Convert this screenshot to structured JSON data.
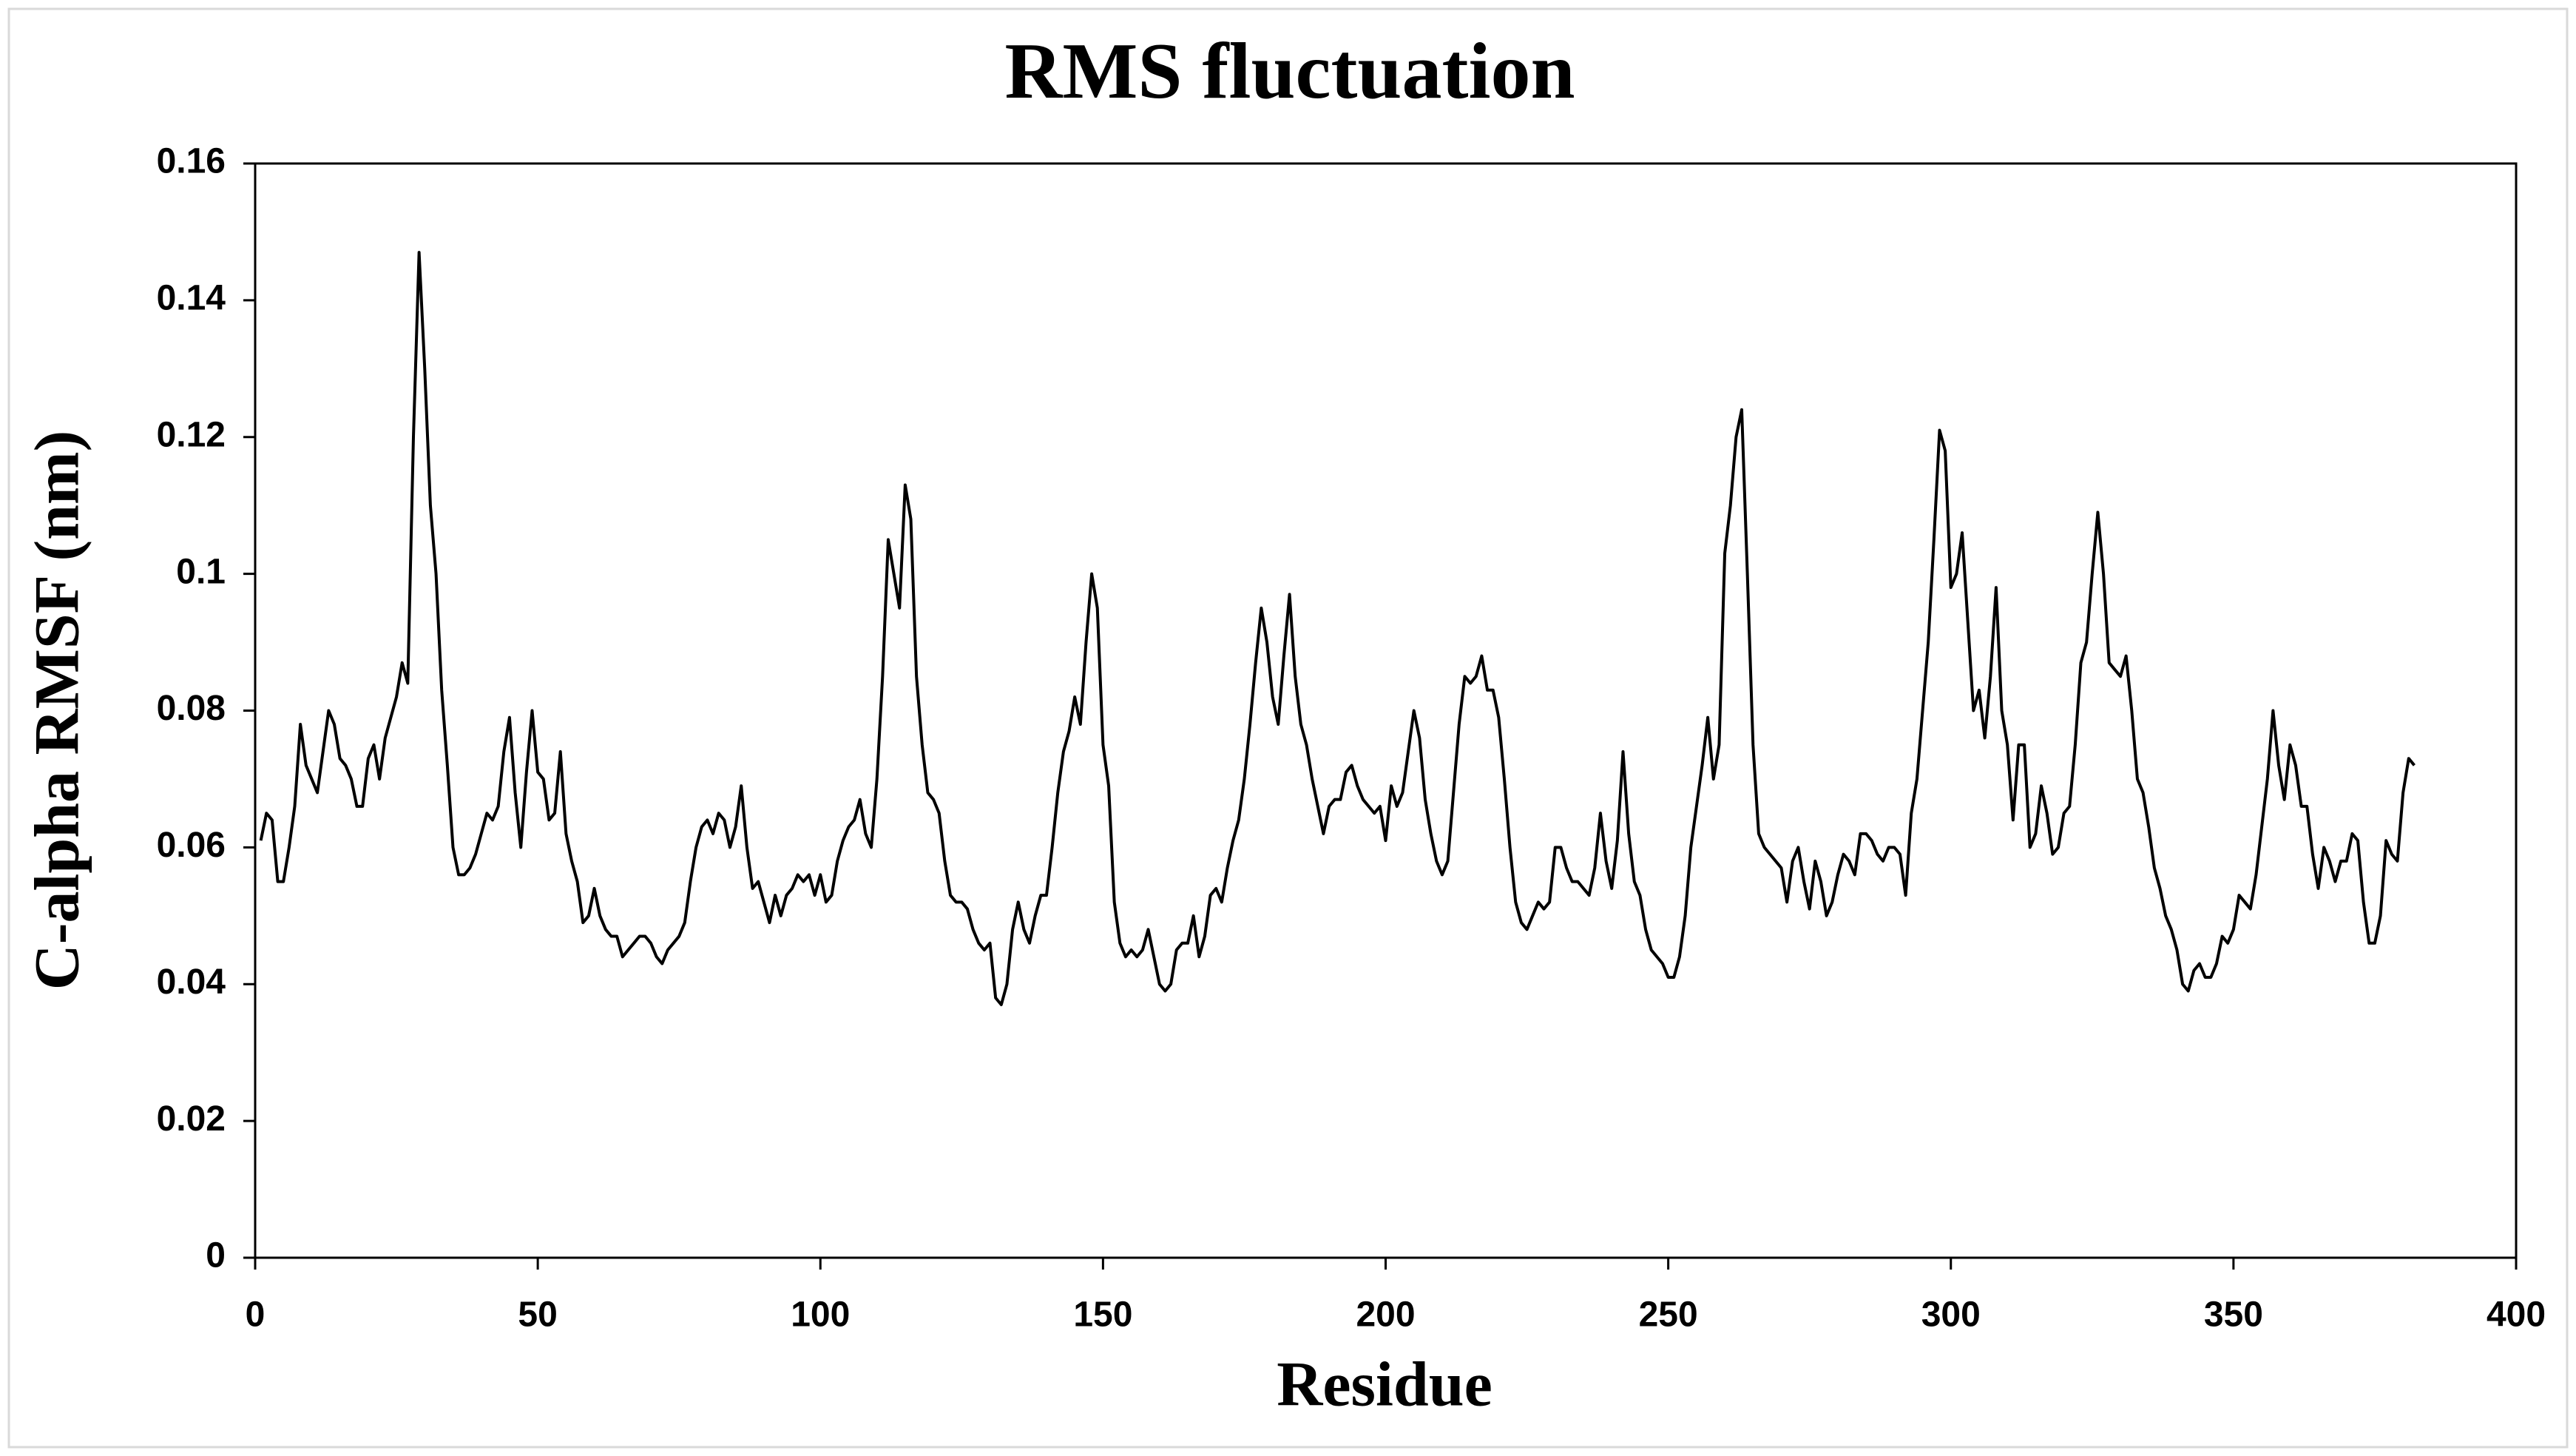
{
  "chart_data": {
    "type": "line",
    "title": "RMS fluctuation",
    "xlabel": "Residue",
    "ylabel": "C-alpha RMSF (nm)",
    "xlim": [
      0,
      400
    ],
    "xticks": [
      0,
      50,
      100,
      150,
      200,
      250,
      300,
      350,
      400
    ],
    "ylim": [
      0,
      0.16
    ],
    "yticks": [
      0,
      0.02,
      0.04,
      0.06,
      0.08,
      0.1,
      0.12,
      0.14,
      0.16
    ],
    "grid": false,
    "series": [
      {
        "color": "#000000",
        "x": [
          1,
          2,
          3,
          4,
          5,
          6,
          7,
          8,
          9,
          10,
          11,
          12,
          13,
          14,
          15,
          16,
          17,
          18,
          19,
          20,
          21,
          22,
          23,
          24,
          25,
          26,
          27,
          28,
          29,
          30,
          31,
          32,
          33,
          34,
          35,
          36,
          37,
          38,
          39,
          40,
          41,
          42,
          43,
          44,
          45,
          46,
          47,
          48,
          49,
          50,
          51,
          52,
          53,
          54,
          55,
          56,
          57,
          58,
          59,
          60,
          61,
          62,
          63,
          64,
          65,
          66,
          67,
          68,
          69,
          70,
          71,
          72,
          73,
          74,
          75,
          76,
          77,
          78,
          79,
          80,
          81,
          82,
          83,
          84,
          85,
          86,
          87,
          88,
          89,
          90,
          91,
          92,
          93,
          94,
          95,
          96,
          97,
          98,
          99,
          100,
          101,
          102,
          103,
          104,
          105,
          106,
          107,
          108,
          109,
          110,
          111,
          112,
          113,
          114,
          115,
          116,
          117,
          118,
          119,
          120,
          121,
          122,
          123,
          124,
          125,
          126,
          127,
          128,
          129,
          130,
          131,
          132,
          133,
          134,
          135,
          136,
          137,
          138,
          139,
          140,
          141,
          142,
          143,
          144,
          145,
          146,
          147,
          148,
          149,
          150,
          151,
          152,
          153,
          154,
          155,
          156,
          157,
          158,
          159,
          160,
          161,
          162,
          163,
          164,
          165,
          166,
          167,
          168,
          169,
          170,
          171,
          172,
          173,
          174,
          175,
          176,
          177,
          178,
          179,
          180,
          181,
          182,
          183,
          184,
          185,
          186,
          187,
          188,
          189,
          190,
          191,
          192,
          193,
          194,
          195,
          196,
          197,
          198,
          199,
          200,
          201,
          202,
          203,
          204,
          205,
          206,
          207,
          208,
          209,
          210,
          211,
          212,
          213,
          214,
          215,
          216,
          217,
          218,
          219,
          220,
          221,
          222,
          223,
          224,
          225,
          226,
          227,
          228,
          229,
          230,
          231,
          232,
          233,
          234,
          235,
          236,
          237,
          238,
          239,
          240,
          241,
          242,
          243,
          244,
          245,
          246,
          247,
          248,
          249,
          250,
          251,
          252,
          253,
          254,
          255,
          256,
          257,
          258,
          259,
          260,
          261,
          262,
          263,
          264,
          265,
          266,
          267,
          268,
          269,
          270,
          271,
          272,
          273,
          274,
          275,
          276,
          277,
          278,
          279,
          280,
          281,
          282,
          283,
          284,
          285,
          286,
          287,
          288,
          289,
          290,
          291,
          292,
          293,
          294,
          295,
          296,
          297,
          298,
          299,
          300,
          301,
          302,
          303,
          304,
          305,
          306,
          307,
          308,
          309,
          310,
          311,
          312,
          313,
          314,
          315,
          316,
          317,
          318,
          319,
          320,
          321,
          322,
          323,
          324,
          325,
          326,
          327,
          328,
          329,
          330,
          331,
          332,
          333,
          334,
          335,
          336,
          337,
          338,
          339,
          340,
          341,
          342,
          343,
          344,
          345,
          346,
          347,
          348,
          349,
          350,
          351,
          352,
          353,
          354,
          355,
          356,
          357,
          358,
          359,
          360,
          361,
          362,
          363,
          364,
          365,
          366,
          367,
          368,
          369,
          370,
          371,
          372,
          373,
          374,
          375,
          376,
          377,
          378,
          379,
          380,
          381,
          382
        ],
        "values": [
          0.061,
          0.065,
          0.064,
          0.055,
          0.055,
          0.06,
          0.066,
          0.078,
          0.072,
          0.07,
          0.068,
          0.074,
          0.08,
          0.078,
          0.073,
          0.072,
          0.07,
          0.066,
          0.066,
          0.073,
          0.075,
          0.07,
          0.076,
          0.079,
          0.082,
          0.087,
          0.084,
          0.12,
          0.147,
          0.13,
          0.11,
          0.1,
          0.083,
          0.072,
          0.06,
          0.056,
          0.056,
          0.057,
          0.059,
          0.062,
          0.065,
          0.064,
          0.066,
          0.074,
          0.079,
          0.068,
          0.06,
          0.071,
          0.08,
          0.071,
          0.07,
          0.064,
          0.065,
          0.074,
          0.062,
          0.058,
          0.055,
          0.049,
          0.05,
          0.054,
          0.05,
          0.048,
          0.047,
          0.047,
          0.044,
          0.045,
          0.046,
          0.047,
          0.047,
          0.046,
          0.044,
          0.043,
          0.045,
          0.046,
          0.047,
          0.049,
          0.055,
          0.06,
          0.063,
          0.064,
          0.062,
          0.065,
          0.064,
          0.06,
          0.063,
          0.069,
          0.06,
          0.054,
          0.055,
          0.052,
          0.049,
          0.053,
          0.05,
          0.053,
          0.054,
          0.056,
          0.055,
          0.056,
          0.053,
          0.056,
          0.052,
          0.053,
          0.058,
          0.061,
          0.063,
          0.064,
          0.067,
          0.062,
          0.06,
          0.07,
          0.085,
          0.105,
          0.1,
          0.095,
          0.113,
          0.108,
          0.085,
          0.075,
          0.068,
          0.067,
          0.065,
          0.058,
          0.053,
          0.052,
          0.052,
          0.051,
          0.048,
          0.046,
          0.045,
          0.046,
          0.038,
          0.037,
          0.04,
          0.048,
          0.052,
          0.048,
          0.046,
          0.05,
          0.053,
          0.053,
          0.06,
          0.068,
          0.074,
          0.077,
          0.082,
          0.078,
          0.09,
          0.1,
          0.095,
          0.075,
          0.069,
          0.052,
          0.046,
          0.044,
          0.045,
          0.044,
          0.045,
          0.048,
          0.044,
          0.04,
          0.039,
          0.04,
          0.045,
          0.046,
          0.046,
          0.05,
          0.044,
          0.047,
          0.053,
          0.054,
          0.052,
          0.057,
          0.061,
          0.064,
          0.07,
          0.078,
          0.087,
          0.095,
          0.09,
          0.082,
          0.078,
          0.088,
          0.097,
          0.085,
          0.078,
          0.075,
          0.07,
          0.066,
          0.062,
          0.066,
          0.067,
          0.067,
          0.071,
          0.072,
          0.069,
          0.067,
          0.066,
          0.065,
          0.066,
          0.061,
          0.069,
          0.066,
          0.068,
          0.074,
          0.08,
          0.076,
          0.067,
          0.062,
          0.058,
          0.056,
          0.058,
          0.068,
          0.078,
          0.085,
          0.084,
          0.085,
          0.088,
          0.083,
          0.083,
          0.079,
          0.07,
          0.06,
          0.052,
          0.049,
          0.048,
          0.05,
          0.052,
          0.051,
          0.052,
          0.06,
          0.06,
          0.057,
          0.055,
          0.055,
          0.054,
          0.053,
          0.057,
          0.065,
          0.058,
          0.054,
          0.061,
          0.074,
          0.062,
          0.055,
          0.053,
          0.048,
          0.045,
          0.044,
          0.043,
          0.041,
          0.041,
          0.044,
          0.05,
          0.06,
          0.066,
          0.072,
          0.079,
          0.07,
          0.075,
          0.103,
          0.11,
          0.12,
          0.124,
          0.1,
          0.075,
          0.062,
          0.06,
          0.059,
          0.058,
          0.057,
          0.052,
          0.058,
          0.06,
          0.055,
          0.051,
          0.058,
          0.055,
          0.05,
          0.052,
          0.056,
          0.059,
          0.058,
          0.056,
          0.062,
          0.062,
          0.061,
          0.059,
          0.058,
          0.06,
          0.06,
          0.059,
          0.053,
          0.065,
          0.07,
          0.08,
          0.09,
          0.105,
          0.121,
          0.118,
          0.098,
          0.1,
          0.106,
          0.093,
          0.08,
          0.083,
          0.076,
          0.085,
          0.098,
          0.08,
          0.075,
          0.064,
          0.075,
          0.075,
          0.06,
          0.062,
          0.069,
          0.065,
          0.059,
          0.06,
          0.065,
          0.066,
          0.075,
          0.087,
          0.09,
          0.1,
          0.109,
          0.1,
          0.087,
          0.086,
          0.085,
          0.088,
          0.08,
          0.07,
          0.068,
          0.063,
          0.057,
          0.054,
          0.05,
          0.048,
          0.045,
          0.04,
          0.039,
          0.042,
          0.043,
          0.041,
          0.041,
          0.043,
          0.047,
          0.046,
          0.048,
          0.053,
          0.052,
          0.051,
          0.056,
          0.063,
          0.07,
          0.08,
          0.072,
          0.067,
          0.075,
          0.072,
          0.066,
          0.066,
          0.059,
          0.054,
          0.06,
          0.058,
          0.055,
          0.058,
          0.058,
          0.062,
          0.061,
          0.052,
          0.046,
          0.046,
          0.05,
          0.061,
          0.059,
          0.058,
          0.068,
          0.073,
          0.072
        ]
      }
    ]
  }
}
